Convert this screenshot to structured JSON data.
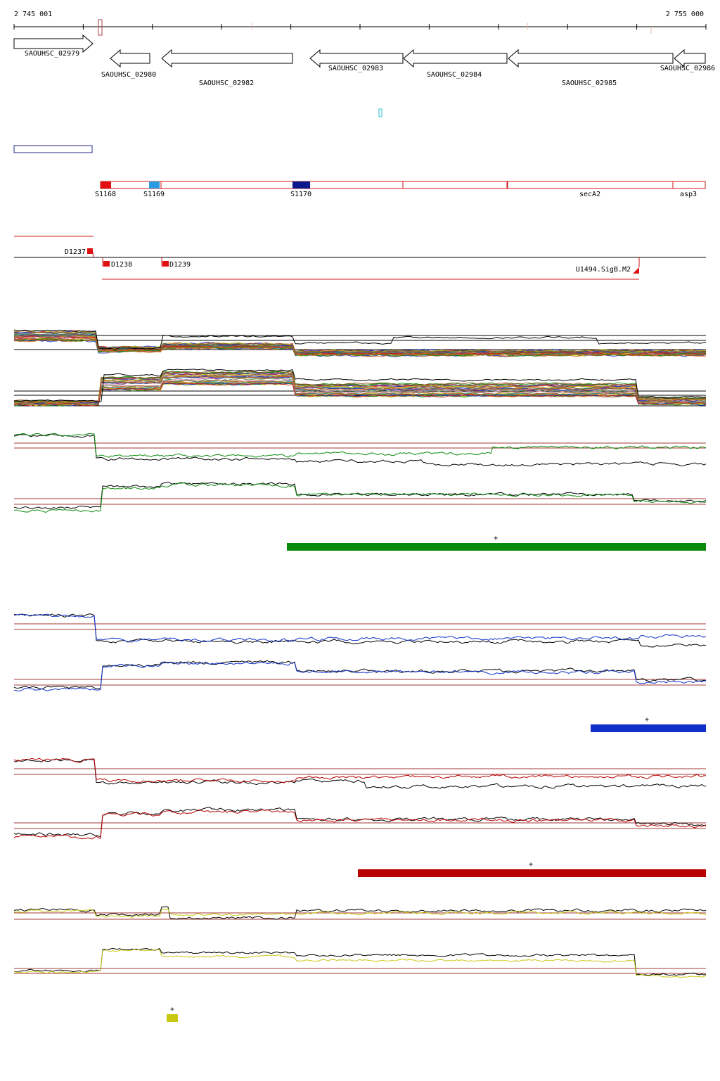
{
  "coords": {
    "start_label": "2 745 001",
    "end_label": "2 755 000",
    "start": 2745001,
    "end": 2755000
  },
  "colors": {
    "gene": "#000000",
    "segment": "#d21a1a",
    "segment_light": "#2b9be0",
    "segment_dark": "#0a1a8c",
    "cyan": "#27c6d8",
    "navy": "#24248f",
    "track_green": "#0a8a0a",
    "track_blue": "#1030c8",
    "track_red": "#b80000",
    "track_yellow": "#c8c814",
    "baseline": "#a03838"
  },
  "genes": [
    {
      "label": "SAOUHSC_02979",
      "strand": "+"
    },
    {
      "label": "SAOUHSC_02980",
      "strand": "-"
    },
    {
      "label": "SAOUHSC_02982",
      "strand": "-"
    },
    {
      "label": "SAOUHSC_02983",
      "strand": "-"
    },
    {
      "label": "SAOUHSC_02984",
      "strand": "-"
    },
    {
      "label": "SAOUHSC_02985",
      "strand": "-"
    },
    {
      "label": "SAOUHSC_02986",
      "strand": "-"
    }
  ],
  "segments": [
    {
      "label": "S1168"
    },
    {
      "label": "S1169"
    },
    {
      "label": "S1170"
    },
    {
      "label": ""
    },
    {
      "label": ""
    },
    {
      "label": "secA2"
    },
    {
      "label": "asp3"
    }
  ],
  "transcripts": [
    {
      "label": "D1237"
    },
    {
      "label": "D1238"
    },
    {
      "label": "D1239"
    },
    {
      "label": "U1494.SigB.M2"
    }
  ],
  "condition_tracks": [
    {
      "name": "green",
      "plus_label": "+"
    },
    {
      "name": "blue",
      "plus_label": "+"
    },
    {
      "name": "red",
      "plus_label": "+"
    },
    {
      "name": "yellow",
      "plus_label": "+"
    }
  ]
}
